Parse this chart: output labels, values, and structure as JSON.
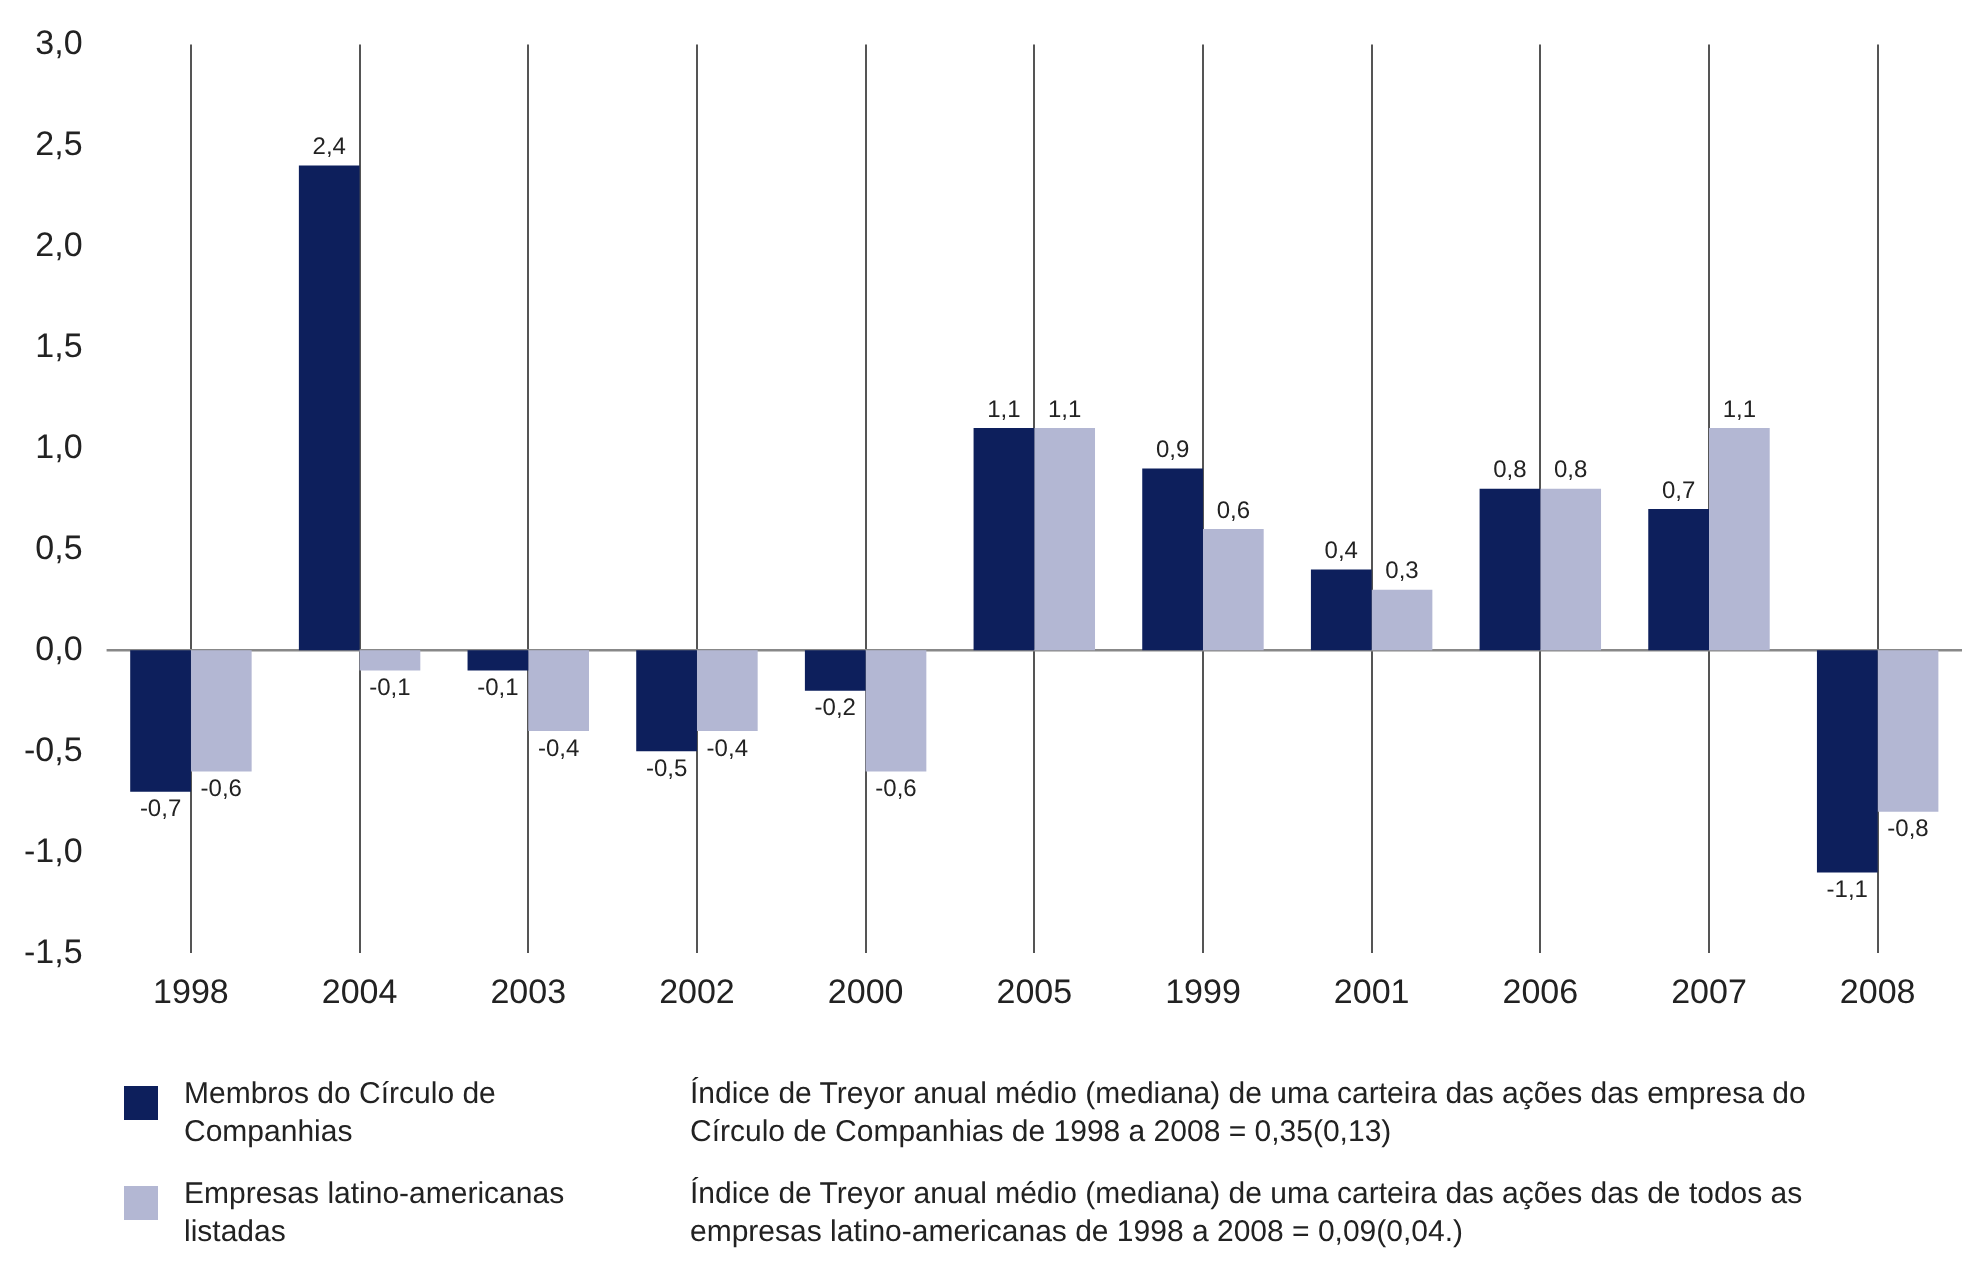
{
  "chart_data": {
    "type": "bar",
    "categories": [
      "1998",
      "2004",
      "2003",
      "2002",
      "2000",
      "2005",
      "1999",
      "2001",
      "2006",
      "2007",
      "2008"
    ],
    "series": [
      {
        "name": "Membros do Círculo de Companhias",
        "color": "#0d1f5c",
        "values": [
          -0.7,
          2.4,
          -0.1,
          -0.5,
          -0.2,
          1.1,
          0.9,
          0.4,
          0.8,
          0.7,
          -1.1
        ],
        "value_labels": [
          "-0,7",
          "2,4",
          "-0,1",
          "-0,5",
          "-0,2",
          "1,1",
          "0,9",
          "0,4",
          "0,8",
          "0,7",
          "-1,1"
        ]
      },
      {
        "name": "Empresas latino-americanas listadas",
        "color": "#b3b7d3",
        "values": [
          -0.6,
          -0.1,
          -0.4,
          -0.4,
          -0.6,
          1.1,
          0.6,
          0.3,
          0.8,
          1.1,
          -0.8
        ],
        "value_labels": [
          "-0,6",
          "-0,1",
          "-0,4",
          "-0,4",
          "-0,6",
          "1,1",
          "0,6",
          "0,3",
          "0,8",
          "1,1",
          "-0,8"
        ]
      }
    ],
    "ylim": [
      -1.5,
      3
    ],
    "yticks": [
      {
        "value": -1.5,
        "label": "-1,5"
      },
      {
        "value": -1,
        "label": "-1,0"
      },
      {
        "value": -0.5,
        "label": "-0,5"
      },
      {
        "value": 0,
        "label": "0,0"
      },
      {
        "value": 0.5,
        "label": "0,5"
      },
      {
        "value": 1,
        "label": "1,0"
      },
      {
        "value": 1.5,
        "label": "1,5"
      },
      {
        "value": 2,
        "label": "2,0"
      },
      {
        "value": 2.5,
        "label": "2,5"
      },
      {
        "value": 3,
        "label": "3,0"
      }
    ],
    "grid": "x",
    "legend": "bottom left",
    "ref_lines": [
      {
        "axis": "y",
        "value": 0,
        "color": "#888888"
      }
    ],
    "annotations": [
      "Índice de Treyor anual médio (mediana) de uma carteira das ações das empresa do Círculo de Companhias de 1998 a 2008 = 0,35(0,13)",
      "Índice de Treyor anual médio (mediana) de uma carteira das ações das de todos as empresas latino-americanas de 1998 a 2008 = 0,09(0,04.)"
    ]
  }
}
